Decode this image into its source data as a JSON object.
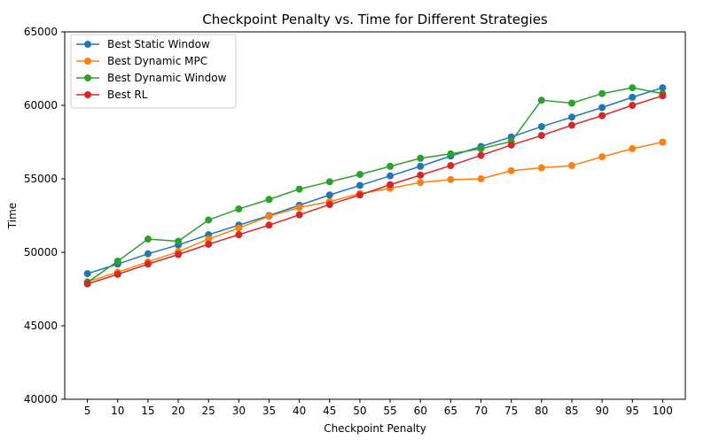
{
  "chart_data": {
    "type": "line",
    "title": "Checkpoint Penalty vs. Time for Different Strategies",
    "xlabel": "Checkpoint Penalty",
    "ylabel": "Time",
    "x": [
      5,
      10,
      15,
      20,
      25,
      30,
      35,
      40,
      45,
      50,
      55,
      60,
      65,
      70,
      75,
      80,
      85,
      90,
      95,
      100
    ],
    "xticks": [
      "5",
      "10",
      "15",
      "20",
      "25",
      "30",
      "35",
      "40",
      "45",
      "50",
      "55",
      "60",
      "65",
      "70",
      "75",
      "80",
      "85",
      "90",
      "95",
      "100"
    ],
    "ylim": [
      40000,
      65000
    ],
    "yticks": [
      "40000",
      "45000",
      "50000",
      "55000",
      "60000",
      "65000"
    ],
    "grid": false,
    "legend_position": "upper-left",
    "series": [
      {
        "name": "Best Static Window",
        "color": "#1f77b4",
        "values": [
          48550,
          49200,
          49900,
          50500,
          51200,
          51850,
          52500,
          53200,
          53900,
          54550,
          55200,
          55850,
          56550,
          57200,
          57850,
          58550,
          59200,
          59850,
          60550,
          61200
        ]
      },
      {
        "name": "Best Dynamic MPC",
        "color": "#ff7f0e",
        "values": [
          48000,
          48650,
          49350,
          50050,
          50900,
          51650,
          52450,
          53050,
          53450,
          54000,
          54350,
          54750,
          54950,
          55000,
          55550,
          55750,
          55900,
          56500,
          57050,
          57500
        ]
      },
      {
        "name": "Best Dynamic Window",
        "color": "#2ca02c",
        "values": [
          47950,
          49400,
          50900,
          50750,
          52200,
          52950,
          53600,
          54300,
          54800,
          55300,
          55850,
          56400,
          56700,
          57050,
          57550,
          60350,
          60150,
          60800,
          61200,
          60800
        ]
      },
      {
        "name": "Best RL",
        "color": "#d62728",
        "values": [
          47850,
          48500,
          49200,
          49850,
          50550,
          51200,
          51850,
          52550,
          53250,
          53900,
          54600,
          55250,
          55900,
          56600,
          57300,
          57950,
          58650,
          59300,
          60000,
          60650
        ]
      }
    ]
  }
}
